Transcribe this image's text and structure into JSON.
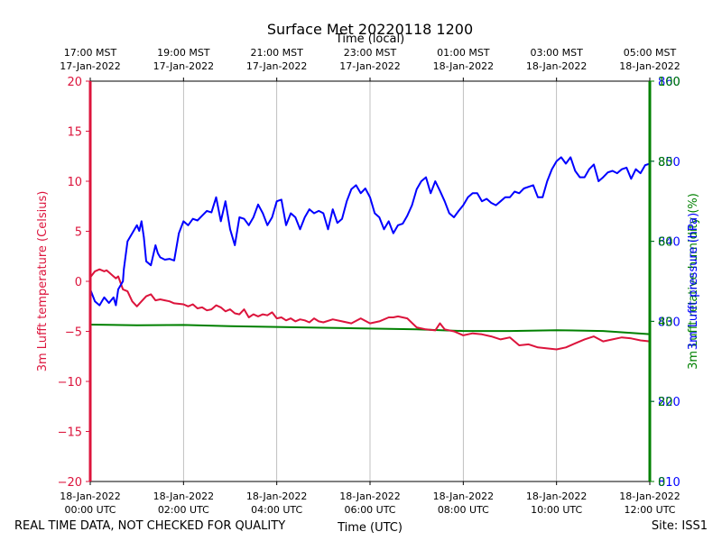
{
  "title": "Surface Met 20220118 1200",
  "footer": {
    "left": "REAL TIME DATA, NOT CHECKED FOR QUALITY",
    "right": "Site: ISS1"
  },
  "colors": {
    "temperature": "#dc143c",
    "humidity": "#008000",
    "pressure": "#0000ff"
  },
  "chart_data": {
    "type": "line",
    "title": "Surface Met 20220118 1200",
    "xlabel": "Time (UTC)",
    "xlabel_top": "Time (local)",
    "x_hours_range": [
      0,
      12
    ],
    "bottom_ticks": [
      {
        "h": 0,
        "line1": "18-Jan-2022",
        "line2": "00:00 UTC"
      },
      {
        "h": 2,
        "line1": "18-Jan-2022",
        "line2": "02:00 UTC"
      },
      {
        "h": 4,
        "line1": "18-Jan-2022",
        "line2": "04:00 UTC"
      },
      {
        "h": 6,
        "line1": "18-Jan-2022",
        "line2": "06:00 UTC"
      },
      {
        "h": 8,
        "line1": "18-Jan-2022",
        "line2": "08:00 UTC"
      },
      {
        "h": 10,
        "line1": "18-Jan-2022",
        "line2": "10:00 UTC"
      },
      {
        "h": 12,
        "line1": "18-Jan-2022",
        "line2": "12:00 UTC"
      }
    ],
    "top_ticks": [
      {
        "h": 0,
        "line1": "17:00 MST",
        "line2": "17-Jan-2022"
      },
      {
        "h": 2,
        "line1": "19:00 MST",
        "line2": "17-Jan-2022"
      },
      {
        "h": 4,
        "line1": "21:00 MST",
        "line2": "17-Jan-2022"
      },
      {
        "h": 6,
        "line1": "23:00 MST",
        "line2": "17-Jan-2022"
      },
      {
        "h": 8,
        "line1": "01:00 MST",
        "line2": "18-Jan-2022"
      },
      {
        "h": 10,
        "line1": "03:00 MST",
        "line2": "18-Jan-2022"
      },
      {
        "h": 12,
        "line1": "05:00 MST",
        "line2": "18-Jan-2022"
      }
    ],
    "left_axis": {
      "label": "3m Lufft temperature (Celsius)",
      "ylim": [
        -20,
        20
      ],
      "ticks": [
        "20",
        "15",
        "10",
        "5",
        "0",
        "−5",
        "−10",
        "−15",
        "−20"
      ]
    },
    "right_axis_humidity": {
      "label": "3m Lufft relative humidity (%)",
      "ylim": [
        0,
        100
      ],
      "ticks": [
        "100",
        "80",
        "60",
        "40",
        "20",
        "0"
      ]
    },
    "right_axis_pressure": {
      "label": "3m Lufft pressure (hPa)",
      "ylim": [
        810,
        860
      ],
      "ticks": [
        "860",
        "850",
        "840",
        "830",
        "820",
        "810"
      ]
    },
    "series": [
      {
        "name": "Temperature",
        "axis": "left",
        "x": [
          0,
          0.1,
          0.2,
          0.3,
          0.35,
          0.4,
          0.5,
          0.55,
          0.6,
          0.7,
          0.8,
          0.9,
          1.0,
          1.1,
          1.2,
          1.3,
          1.4,
          1.5,
          1.6,
          1.7,
          1.8,
          2.0,
          2.1,
          2.2,
          2.3,
          2.4,
          2.5,
          2.6,
          2.7,
          2.8,
          2.9,
          3.0,
          3.1,
          3.2,
          3.3,
          3.4,
          3.5,
          3.6,
          3.7,
          3.8,
          3.9,
          4.0,
          4.1,
          4.2,
          4.3,
          4.4,
          4.5,
          4.6,
          4.7,
          4.8,
          4.9,
          5.0,
          5.2,
          5.4,
          5.6,
          5.8,
          6.0,
          6.2,
          6.4,
          6.5,
          6.6,
          6.8,
          7.0,
          7.2,
          7.4,
          7.5,
          7.6,
          7.8,
          8.0,
          8.2,
          8.4,
          8.6,
          8.8,
          9.0,
          9.2,
          9.4,
          9.6,
          9.8,
          10.0,
          10.2,
          10.4,
          10.6,
          10.8,
          11.0,
          11.2,
          11.4,
          11.6,
          11.8,
          12.0
        ],
        "values": [
          0.4,
          1.0,
          1.2,
          1.0,
          1.1,
          0.9,
          0.5,
          0.3,
          0.5,
          -0.8,
          -1.0,
          -2.0,
          -2.5,
          -2.0,
          -1.5,
          -1.3,
          -1.9,
          -1.8,
          -1.9,
          -2.0,
          -2.2,
          -2.3,
          -2.5,
          -2.3,
          -2.7,
          -2.6,
          -2.9,
          -2.8,
          -2.4,
          -2.6,
          -3.0,
          -2.8,
          -3.2,
          -3.3,
          -2.8,
          -3.6,
          -3.3,
          -3.5,
          -3.3,
          -3.4,
          -3.1,
          -3.7,
          -3.6,
          -3.9,
          -3.7,
          -4.0,
          -3.8,
          -3.9,
          -4.1,
          -3.7,
          -4.0,
          -4.1,
          -3.8,
          -4.0,
          -4.2,
          -3.7,
          -4.2,
          -4.0,
          -3.6,
          -3.6,
          -3.5,
          -3.7,
          -4.6,
          -4.8,
          -4.9,
          -4.2,
          -4.8,
          -5.0,
          -5.4,
          -5.2,
          -5.3,
          -5.5,
          -5.8,
          -5.6,
          -6.4,
          -6.3,
          -6.6,
          -6.7,
          -6.8,
          -6.6,
          -6.2,
          -5.8,
          -5.5,
          -6.0,
          -5.8,
          -5.6,
          -5.7,
          -5.9,
          -6.0
        ]
      },
      {
        "name": "Relative humidity",
        "axis": "right_humidity",
        "x": [
          0,
          1,
          2,
          3,
          4,
          5,
          6,
          7,
          8,
          9,
          10,
          11,
          12
        ],
        "values": [
          39.2,
          39.0,
          39.1,
          38.8,
          38.6,
          38.4,
          38.2,
          38.0,
          37.6,
          37.6,
          37.8,
          37.6,
          36.8
        ]
      },
      {
        "name": "Pressure",
        "axis": "right_pressure",
        "x": [
          0,
          0.1,
          0.2,
          0.3,
          0.4,
          0.5,
          0.55,
          0.6,
          0.7,
          0.72,
          0.8,
          0.9,
          1.0,
          1.05,
          1.1,
          1.15,
          1.2,
          1.3,
          1.4,
          1.45,
          1.5,
          1.6,
          1.7,
          1.8,
          1.9,
          2.0,
          2.1,
          2.2,
          2.3,
          2.4,
          2.5,
          2.6,
          2.7,
          2.8,
          2.9,
          3.0,
          3.1,
          3.2,
          3.3,
          3.4,
          3.5,
          3.6,
          3.7,
          3.8,
          3.9,
          4.0,
          4.1,
          4.2,
          4.3,
          4.4,
          4.5,
          4.6,
          4.7,
          4.8,
          4.9,
          5.0,
          5.1,
          5.2,
          5.3,
          5.4,
          5.5,
          5.6,
          5.7,
          5.8,
          5.9,
          6.0,
          6.1,
          6.2,
          6.3,
          6.4,
          6.5,
          6.6,
          6.7,
          6.8,
          6.9,
          7.0,
          7.1,
          7.2,
          7.3,
          7.4,
          7.5,
          7.6,
          7.7,
          7.8,
          7.9,
          8.0,
          8.1,
          8.2,
          8.3,
          8.4,
          8.5,
          8.6,
          8.7,
          8.8,
          8.9,
          9.0,
          9.1,
          9.2,
          9.3,
          9.4,
          9.5,
          9.6,
          9.7,
          9.8,
          9.9,
          10.0,
          10.1,
          10.2,
          10.3,
          10.4,
          10.5,
          10.6,
          10.7,
          10.8,
          10.9,
          11.0,
          11.1,
          11.2,
          11.3,
          11.4,
          11.5,
          11.6,
          11.7,
          11.8,
          11.9,
          12.0
        ],
        "values": [
          834.0,
          832.5,
          832.0,
          833.0,
          832.3,
          833.0,
          832.0,
          834.0,
          835.0,
          836.5,
          840.0,
          841.0,
          842.0,
          841.3,
          842.5,
          840.5,
          837.5,
          837.0,
          839.5,
          838.5,
          838.0,
          837.7,
          837.8,
          837.6,
          841.0,
          842.5,
          842.0,
          842.8,
          842.6,
          843.2,
          843.8,
          843.6,
          845.5,
          842.5,
          845.0,
          841.5,
          839.5,
          843.0,
          842.8,
          842.0,
          843.0,
          844.6,
          843.5,
          842.0,
          843.0,
          845.0,
          845.2,
          842.0,
          843.5,
          843.0,
          841.5,
          843.0,
          844.0,
          843.5,
          843.8,
          843.5,
          841.5,
          844.0,
          842.3,
          842.8,
          845.0,
          846.5,
          847.0,
          846.0,
          846.6,
          845.5,
          843.5,
          843.0,
          841.5,
          842.5,
          841.0,
          842.0,
          842.2,
          843.2,
          844.5,
          846.5,
          847.5,
          848.0,
          846.0,
          847.5,
          846.3,
          845.0,
          843.5,
          843.0,
          843.8,
          844.5,
          845.5,
          846.0,
          846.0,
          845.0,
          845.3,
          844.8,
          844.5,
          845.0,
          845.5,
          845.5,
          846.2,
          846.0,
          846.6,
          846.8,
          847.0,
          845.5,
          845.5,
          847.5,
          849.0,
          850.0,
          850.5,
          849.7,
          850.5,
          848.8,
          848.0,
          848.0,
          849.0,
          849.6,
          847.5,
          848.0,
          848.6,
          848.8,
          848.5,
          849.0,
          849.2,
          847.8,
          849.0,
          848.5,
          849.5,
          849.7
        ]
      }
    ]
  }
}
